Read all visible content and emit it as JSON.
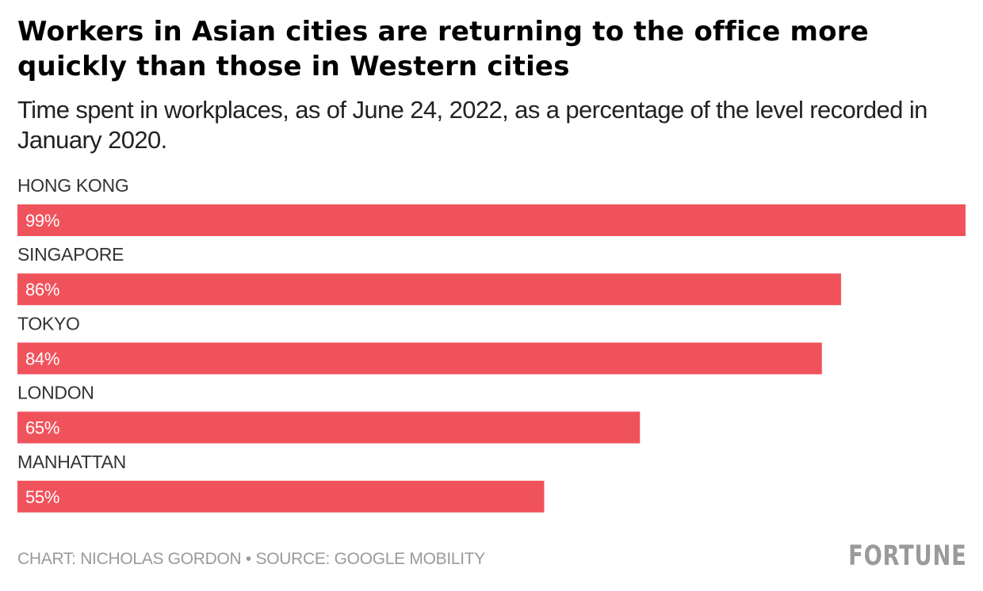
{
  "title": "Workers in Asian cities are returning to the office more quickly than those in Western cities",
  "subtitle": "Time spent in workplaces, as of June 24, 2022, as a percentage of the level recorded in January 2020.",
  "footer": {
    "credit": "CHART: NICHOLAS GORDON • SOURCE: GOOGLE MOBILITY",
    "logo": "FORTUNE"
  },
  "colors": {
    "bar": "#f0525c",
    "bar_label": "#ffffff",
    "category_label": "#333333",
    "muted": "#9a9a9a"
  },
  "chart_data": {
    "type": "bar",
    "orientation": "horizontal",
    "categories": [
      "HONG KONG",
      "SINGAPORE",
      "TOKYO",
      "LONDON",
      "MANHATTAN"
    ],
    "values": [
      99,
      86,
      84,
      65,
      55
    ],
    "data_labels": [
      "99%",
      "86%",
      "84%",
      "65%",
      "55%"
    ],
    "xlim": [
      0,
      99
    ],
    "grid": false,
    "legend": "none"
  }
}
